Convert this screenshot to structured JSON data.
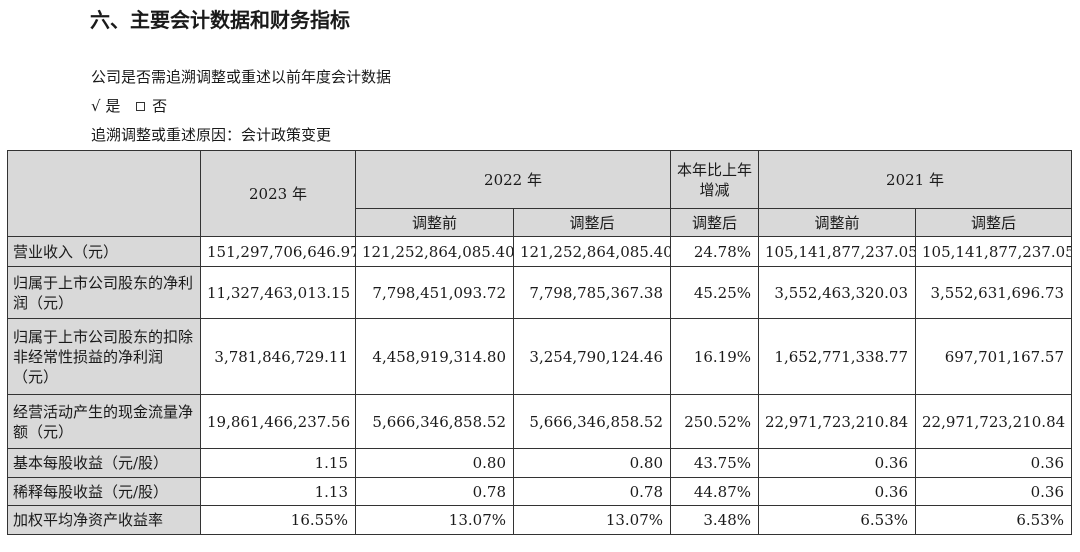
{
  "section_title": "六、主要会计数据和财务指标",
  "retro_question": "公司是否需追溯调整或重述以前年度会计数据",
  "answer": {
    "yes_mark": "√",
    "yes_label": "是",
    "no_label": "否"
  },
  "retro_reason": "追溯调整或重述原因：会计政策变更",
  "table": {
    "headers": {
      "y2023": "2023 年",
      "y2022": "2022 年",
      "yoy": "本年比上年增减",
      "y2021": "2021 年",
      "before": "调整前",
      "after": "调整后",
      "yoy_sub": "调整后"
    },
    "rows": [
      {
        "label": "营业收入（元）",
        "v2023": "151,297,706,646.97",
        "v2022_before": "121,252,864,085.40",
        "v2022_after": "121,252,864,085.40",
        "yoy": "24.78%",
        "v2021_before": "105,141,877,237.05",
        "v2021_after": "105,141,877,237.05"
      },
      {
        "label": "归属于上市公司股东的净利润（元）",
        "v2023": "11,327,463,013.15",
        "v2022_before": "7,798,451,093.72",
        "v2022_after": "7,798,785,367.38",
        "yoy": "45.25%",
        "v2021_before": "3,552,463,320.03",
        "v2021_after": "3,552,631,696.73"
      },
      {
        "label": "归属于上市公司股东的扣除非经常性损益的净利润（元）",
        "v2023": "3,781,846,729.11",
        "v2022_before": "4,458,919,314.80",
        "v2022_after": "3,254,790,124.46",
        "yoy": "16.19%",
        "v2021_before": "1,652,771,338.77",
        "v2021_after": "697,701,167.57"
      },
      {
        "label": "经营活动产生的现金流量净额（元）",
        "v2023": "19,861,466,237.56",
        "v2022_before": "5,666,346,858.52",
        "v2022_after": "5,666,346,858.52",
        "yoy": "250.52%",
        "v2021_before": "22,971,723,210.84",
        "v2021_after": "22,971,723,210.84"
      },
      {
        "label": "基本每股收益（元/股）",
        "v2023": "1.15",
        "v2022_before": "0.80",
        "v2022_after": "0.80",
        "yoy": "43.75%",
        "v2021_before": "0.36",
        "v2021_after": "0.36"
      },
      {
        "label": "稀释每股收益（元/股）",
        "v2023": "1.13",
        "v2022_before": "0.78",
        "v2022_after": "0.78",
        "yoy": "44.87%",
        "v2021_before": "0.36",
        "v2021_after": "0.36"
      },
      {
        "label": "加权平均净资产收益率",
        "v2023": "16.55%",
        "v2022_before": "13.07%",
        "v2022_after": "13.07%",
        "yoy": "3.48%",
        "v2021_before": "6.53%",
        "v2021_after": "6.53%"
      }
    ]
  }
}
